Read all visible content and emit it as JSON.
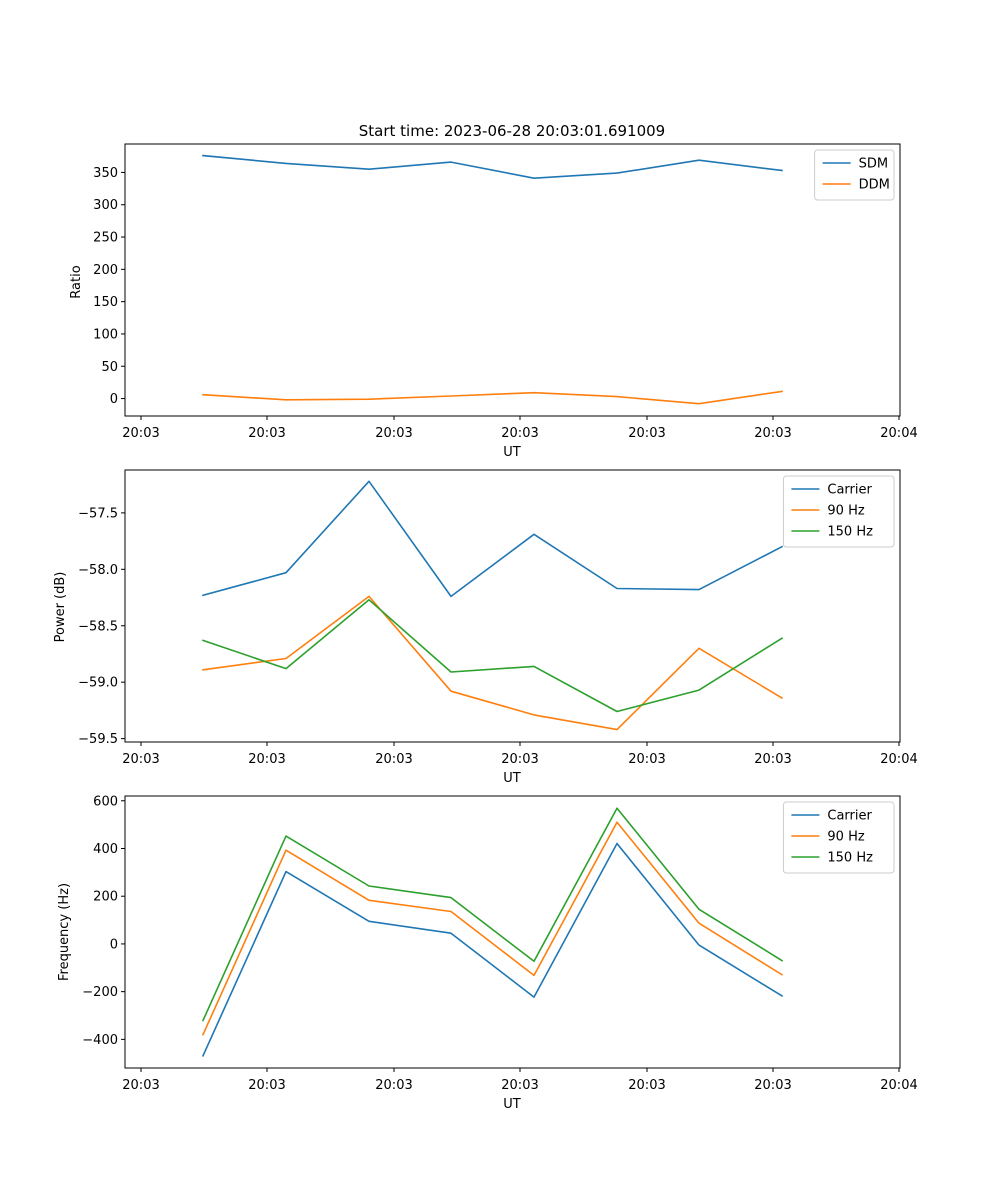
{
  "chart_data": [
    {
      "type": "line",
      "title": "Start time: 2023-06-28 20:03:01.691009",
      "xlabel": "UT",
      "ylabel": "Ratio",
      "xtick_labels": [
        "20:03",
        "20:03",
        "20:03",
        "20:03",
        "20:03",
        "20:03",
        "20:04"
      ],
      "yticks": [
        0,
        50,
        100,
        150,
        200,
        250,
        300,
        350
      ],
      "ylim": [
        -27,
        394
      ],
      "legend_position": "top-right",
      "series": [
        {
          "name": "SDM",
          "color": "#1f77b4",
          "values": [
            376,
            364,
            355,
            366,
            341,
            349,
            369,
            353
          ]
        },
        {
          "name": "DDM",
          "color": "#ff7f0e",
          "values": [
            6,
            -2,
            -1,
            4,
            9,
            3,
            -8,
            11
          ]
        }
      ]
    },
    {
      "type": "line",
      "title": "",
      "xlabel": "UT",
      "ylabel": "Power (dB)",
      "xtick_labels": [
        "20:03",
        "20:03",
        "20:03",
        "20:03",
        "20:03",
        "20:03",
        "20:04"
      ],
      "yticks": [
        -59.5,
        -59.0,
        -58.5,
        -58.0,
        -57.5
      ],
      "ytick_labels": [
        "−59.5",
        "−59.0",
        "−58.5",
        "−58.0",
        "−57.5"
      ],
      "ylim": [
        -59.53,
        -57.12
      ],
      "legend_position": "top-right",
      "series": [
        {
          "name": "Carrier",
          "color": "#1f77b4",
          "values": [
            -58.23,
            -58.03,
            -57.22,
            -58.24,
            -57.69,
            -58.17,
            -58.18,
            -57.8
          ]
        },
        {
          "name": "90 Hz",
          "color": "#ff7f0e",
          "values": [
            -58.89,
            -58.79,
            -58.24,
            -59.08,
            -59.29,
            -59.42,
            -58.7,
            -59.14
          ]
        },
        {
          "name": "150 Hz",
          "color": "#2ca02c",
          "values": [
            -58.63,
            -58.88,
            -58.27,
            -58.91,
            -58.86,
            -59.26,
            -59.07,
            -58.61
          ]
        }
      ]
    },
    {
      "type": "line",
      "title": "",
      "xlabel": "UT",
      "ylabel": "Frequency (Hz)",
      "xtick_labels": [
        "20:03",
        "20:03",
        "20:03",
        "20:03",
        "20:03",
        "20:03",
        "20:04"
      ],
      "yticks": [
        -400,
        -200,
        0,
        200,
        400,
        600
      ],
      "ytick_labels": [
        "−400",
        "−200",
        "0",
        "200",
        "400",
        "600"
      ],
      "ylim": [
        -520,
        620
      ],
      "legend_position": "top-right",
      "series": [
        {
          "name": "Carrier",
          "color": "#1f77b4",
          "values": [
            -469,
            303,
            95,
            45,
            -223,
            421,
            -5,
            -218
          ]
        },
        {
          "name": "90 Hz",
          "color": "#ff7f0e",
          "values": [
            -380,
            393,
            183,
            136,
            -132,
            510,
            87,
            -129
          ]
        },
        {
          "name": "150 Hz",
          "color": "#2ca02c",
          "values": [
            -321,
            452,
            243,
            194,
            -73,
            569,
            145,
            -70
          ]
        }
      ]
    }
  ]
}
